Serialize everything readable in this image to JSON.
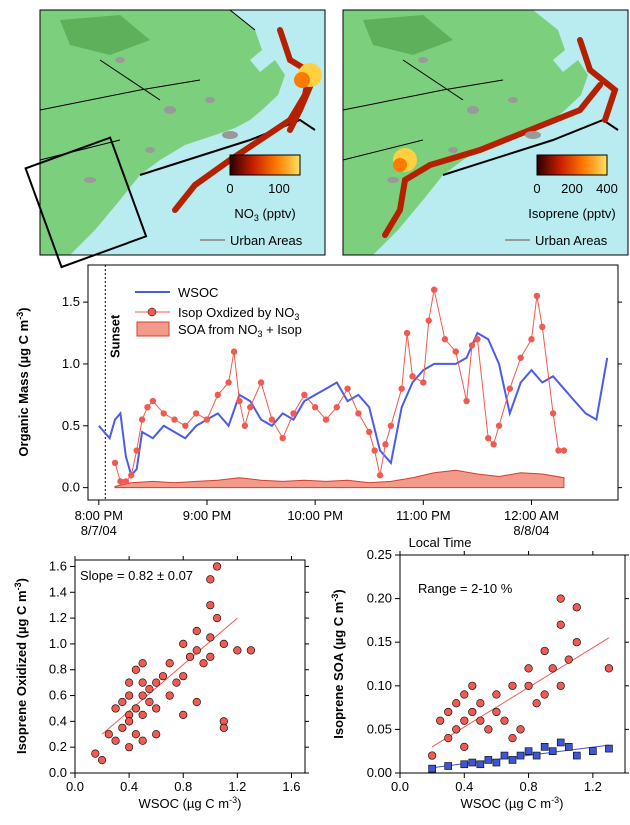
{
  "maps": [
    {
      "colorbar_ticks": [
        "0",
        "100"
      ],
      "colorbar_label": "NO",
      "colorbar_label_sub": "3",
      "colorbar_unit": " (pptv)",
      "legend_label": "Urban Areas",
      "stops": [
        "#2a0000",
        "#c81e00",
        "#ff7a00",
        "#ffe060"
      ]
    },
    {
      "colorbar_ticks": [
        "0",
        "200",
        "400"
      ],
      "colorbar_label": "Isoprene (pptv)",
      "legend_label": "Urban Areas",
      "stops": [
        "#2a0000",
        "#c81e00",
        "#ff7a00",
        "#ffe060"
      ]
    }
  ],
  "colors": {
    "wsoc": "#4a5ce8",
    "isop": "#f05a50",
    "isop_fill": "#f39a8a",
    "soa_blue": "#3d55d8",
    "ocean": "#b8ecf0",
    "land": "#7ccf7c",
    "urban": "#999999"
  },
  "chart_data": [
    {
      "type": "line",
      "ylabel": "Organic Mass (µg C m",
      "ylabel_sup": "-3",
      "ylabel_close": ")",
      "xlabel": "Local Time",
      "annotation": "Sunset",
      "ylim": [
        -0.1,
        1.8
      ],
      "yticks": [
        "0.0",
        "0.5",
        "1.0",
        "1.5"
      ],
      "xticks": [
        "8:00 PM",
        "9:00 PM",
        "10:00 PM",
        "11:00 PM",
        "12:00 AM"
      ],
      "xtick_dates": [
        "8/7/04",
        "",
        "",
        "",
        "8/8/04"
      ],
      "x_hours": [
        0,
        1,
        2,
        3,
        4
      ],
      "xlim": [
        -0.1,
        4.8
      ],
      "sunset_hour": 0.06,
      "legend": [
        "WSOC",
        "Isop Oxdized by NO",
        "SOA from NO"
      ],
      "legend_sub": [
        "",
        "3",
        "3"
      ],
      "legend_tail": [
        "",
        "",
        " + Isop"
      ],
      "series": [
        {
          "name": "WSOC",
          "x": [
            0.0,
            0.05,
            0.1,
            0.15,
            0.2,
            0.25,
            0.3,
            0.35,
            0.4,
            0.5,
            0.6,
            0.7,
            0.8,
            0.9,
            1.0,
            1.1,
            1.2,
            1.3,
            1.4,
            1.5,
            1.6,
            1.7,
            1.8,
            1.9,
            2.0,
            2.1,
            2.2,
            2.3,
            2.4,
            2.5,
            2.6,
            2.7,
            2.8,
            2.9,
            3.0,
            3.1,
            3.2,
            3.3,
            3.4,
            3.5,
            3.6,
            3.7,
            3.8,
            3.9,
            4.0,
            4.1,
            4.2,
            4.3,
            4.4,
            4.5,
            4.6,
            4.7
          ],
          "y": [
            0.5,
            0.45,
            0.4,
            0.55,
            0.6,
            0.25,
            0.1,
            0.15,
            0.45,
            0.4,
            0.5,
            0.45,
            0.4,
            0.5,
            0.55,
            0.6,
            0.5,
            0.75,
            0.7,
            0.55,
            0.5,
            0.6,
            0.55,
            0.7,
            0.75,
            0.8,
            0.85,
            0.7,
            0.75,
            0.65,
            0.3,
            0.2,
            0.65,
            0.85,
            0.95,
            1.0,
            1.0,
            1.0,
            1.05,
            1.25,
            1.2,
            1.0,
            0.6,
            0.85,
            0.95,
            0.85,
            0.9,
            0.8,
            0.7,
            0.6,
            0.55,
            1.05
          ]
        },
        {
          "name": "Isop Oxdized by NO3",
          "x": [
            0.15,
            0.2,
            0.25,
            0.3,
            0.35,
            0.4,
            0.45,
            0.5,
            0.6,
            0.7,
            0.8,
            0.9,
            1.0,
            1.1,
            1.2,
            1.25,
            1.3,
            1.35,
            1.4,
            1.5,
            1.6,
            1.7,
            1.8,
            1.9,
            2.0,
            2.1,
            2.2,
            2.3,
            2.4,
            2.5,
            2.55,
            2.6,
            2.65,
            2.7,
            2.8,
            2.85,
            2.9,
            3.0,
            3.05,
            3.1,
            3.2,
            3.3,
            3.4,
            3.45,
            3.5,
            3.6,
            3.65,
            3.7,
            3.8,
            3.9,
            4.0,
            4.05,
            4.1,
            4.2,
            4.25,
            4.3
          ],
          "y": [
            0.2,
            0.05,
            0.05,
            0.1,
            0.3,
            0.55,
            0.65,
            0.7,
            0.6,
            0.55,
            0.5,
            0.6,
            0.55,
            0.75,
            0.85,
            1.1,
            0.7,
            0.5,
            0.65,
            0.85,
            0.55,
            0.4,
            0.6,
            0.75,
            0.65,
            0.55,
            0.65,
            0.8,
            0.6,
            0.45,
            0.3,
            0.1,
            0.35,
            0.5,
            0.8,
            1.25,
            0.9,
            0.85,
            1.35,
            1.6,
            1.2,
            1.1,
            0.7,
            1.15,
            1.2,
            0.4,
            0.35,
            0.5,
            0.8,
            1.05,
            1.2,
            1.55,
            1.3,
            0.6,
            0.3,
            0.3
          ]
        },
        {
          "name": "SOA from NO3 + Isop",
          "x": [
            0.15,
            0.3,
            0.5,
            0.7,
            0.9,
            1.1,
            1.3,
            1.5,
            1.7,
            1.9,
            2.1,
            2.3,
            2.5,
            2.7,
            2.9,
            3.1,
            3.3,
            3.5,
            3.7,
            3.9,
            4.1,
            4.3
          ],
          "y": [
            0.01,
            0.04,
            0.05,
            0.04,
            0.05,
            0.06,
            0.08,
            0.06,
            0.05,
            0.06,
            0.05,
            0.06,
            0.04,
            0.05,
            0.08,
            0.12,
            0.14,
            0.11,
            0.09,
            0.12,
            0.11,
            0.08
          ]
        }
      ]
    },
    {
      "type": "scatter",
      "ylabel": "Isoprene Oxidized (µg C m",
      "ylabel_sup": "-3",
      "ylabel_close": ")",
      "xlabel": "WSOC (µg C m",
      "xlabel_sup": "-3",
      "xlabel_close": ")",
      "annotation": "Slope = 0.82 ± 0.07",
      "xlim": [
        0.0,
        1.7
      ],
      "ylim": [
        0.0,
        1.65
      ],
      "xticks": [
        "0.0",
        "0.4",
        "0.8",
        "1.2",
        "1.6"
      ],
      "yticks": [
        "0.0",
        "0.2",
        "0.4",
        "0.6",
        "0.8",
        "1.0",
        "1.2",
        "1.4",
        "1.6"
      ],
      "fit": {
        "x": [
          0.2,
          1.2
        ],
        "y": [
          0.3,
          1.2
        ]
      },
      "series": [
        {
          "x": [
            0.15,
            0.2,
            0.25,
            0.3,
            0.3,
            0.35,
            0.35,
            0.4,
            0.4,
            0.4,
            0.4,
            0.45,
            0.45,
            0.45,
            0.5,
            0.5,
            0.5,
            0.5,
            0.55,
            0.55,
            0.6,
            0.6,
            0.65,
            0.7,
            0.7,
            0.75,
            0.8,
            0.8,
            0.85,
            0.9,
            0.9,
            0.95,
            1.0,
            1.0,
            1.0,
            1.05,
            1.05,
            1.1,
            1.1,
            1.2,
            1.3,
            0.4,
            0.5,
            0.6,
            0.8,
            0.9,
            1.0,
            1.1
          ],
          "y": [
            0.15,
            0.1,
            0.3,
            0.25,
            0.5,
            0.35,
            0.55,
            0.45,
            0.6,
            0.7,
            0.4,
            0.5,
            0.8,
            0.3,
            0.6,
            0.7,
            0.85,
            0.45,
            0.55,
            0.65,
            0.5,
            0.7,
            0.75,
            0.6,
            0.85,
            0.7,
            0.75,
            1.0,
            0.9,
            0.95,
            1.1,
            0.85,
            1.05,
            1.3,
            1.5,
            1.2,
            1.6,
            1.0,
            0.4,
            0.95,
            0.95,
            0.2,
            0.25,
            0.3,
            0.45,
            0.55,
            0.9,
            0.35
          ]
        }
      ]
    },
    {
      "type": "scatter",
      "ylabel": "Isoprene SOA (µg C m",
      "ylabel_sup": "-3",
      "ylabel_close": ")",
      "xlabel": "WSOC (µg C m",
      "xlabel_sup": "-3",
      "xlabel_close": ")",
      "annotation": "Range = 2-10 %",
      "xlim": [
        0.0,
        1.4
      ],
      "ylim": [
        0.0,
        0.25
      ],
      "xticks": [
        "0.0",
        "0.4",
        "0.8",
        "1.2"
      ],
      "yticks": [
        "0.00",
        "0.05",
        "0.10",
        "0.15",
        "0.20",
        "0.25"
      ],
      "fit_upper": {
        "x": [
          0.2,
          1.3
        ],
        "y": [
          0.03,
          0.155
        ]
      },
      "fit_lower": {
        "x": [
          0.2,
          1.3
        ],
        "y": [
          0.006,
          0.032
        ]
      },
      "series": [
        {
          "x": [
            0.2,
            0.25,
            0.3,
            0.3,
            0.35,
            0.35,
            0.4,
            0.4,
            0.4,
            0.45,
            0.45,
            0.5,
            0.5,
            0.55,
            0.6,
            0.6,
            0.65,
            0.7,
            0.7,
            0.75,
            0.8,
            0.8,
            0.85,
            0.9,
            0.9,
            0.95,
            1.0,
            1.0,
            1.0,
            1.05,
            1.1,
            1.1,
            1.3
          ],
          "y": [
            0.02,
            0.06,
            0.07,
            0.04,
            0.05,
            0.08,
            0.06,
            0.09,
            0.03,
            0.07,
            0.1,
            0.06,
            0.08,
            0.05,
            0.07,
            0.09,
            0.06,
            0.04,
            0.1,
            0.05,
            0.1,
            0.12,
            0.08,
            0.09,
            0.14,
            0.12,
            0.1,
            0.17,
            0.2,
            0.13,
            0.15,
            0.19,
            0.12
          ]
        },
        {
          "x": [
            0.2,
            0.3,
            0.4,
            0.45,
            0.5,
            0.55,
            0.6,
            0.65,
            0.7,
            0.75,
            0.8,
            0.85,
            0.9,
            0.95,
            1.0,
            1.05,
            1.1,
            1.2,
            1.3
          ],
          "y": [
            0.005,
            0.008,
            0.01,
            0.012,
            0.01,
            0.015,
            0.012,
            0.02,
            0.015,
            0.02,
            0.025,
            0.02,
            0.03,
            0.025,
            0.035,
            0.03,
            0.02,
            0.025,
            0.028
          ]
        }
      ]
    }
  ]
}
